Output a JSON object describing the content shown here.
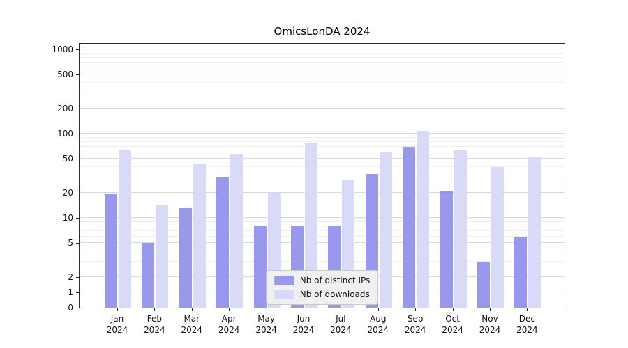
{
  "title": "OmicsLonDA 2024",
  "chart_data": {
    "type": "bar",
    "categories": [
      "Jan 2024",
      "Feb 2024",
      "Mar 2024",
      "Apr 2024",
      "May 2024",
      "Jun 2024",
      "Jul 2024",
      "Aug 2024",
      "Sep 2024",
      "Oct 2024",
      "Nov 2024",
      "Dec 2024"
    ],
    "series": [
      {
        "name": "Nb of distinct IPs",
        "color": "#9898ec",
        "values": [
          19,
          5,
          13,
          30,
          8,
          8,
          8,
          33,
          70,
          21,
          3,
          6
        ]
      },
      {
        "name": "Nb of downloads",
        "color": "#d9d9f8",
        "values": [
          65,
          14,
          44,
          58,
          20,
          78,
          28,
          60,
          108,
          63,
          40,
          52
        ]
      }
    ],
    "yscale": "symlog",
    "yticks": [
      0,
      1,
      2,
      5,
      10,
      20,
      50,
      100,
      200,
      500,
      1000
    ],
    "yticks_minor": [
      3,
      4,
      6,
      7,
      8,
      9,
      30,
      40,
      60,
      70,
      80,
      90,
      300,
      400,
      600,
      700,
      800,
      900
    ],
    "ylim": [
      0,
      1200
    ],
    "grid": true,
    "legend_position": "lower center"
  }
}
